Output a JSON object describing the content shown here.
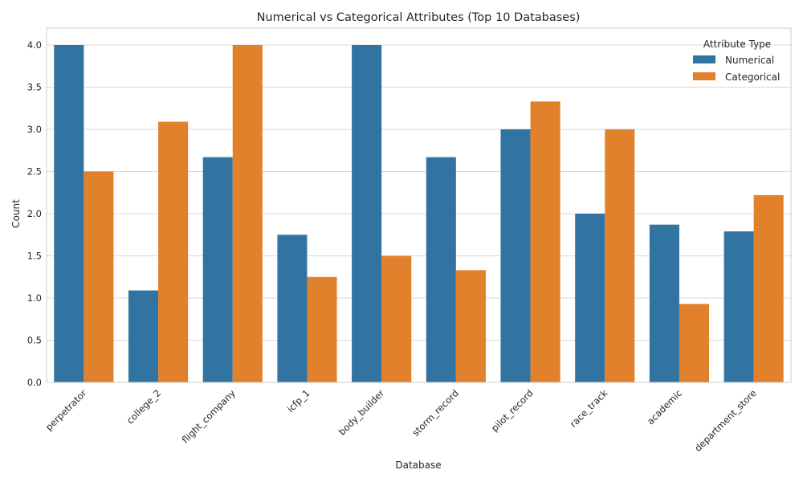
{
  "chart_data": {
    "type": "bar",
    "title": "Numerical vs Categorical Attributes (Top 10 Databases)",
    "xlabel": "Database",
    "ylabel": "Count",
    "ylim": [
      0,
      4.2
    ],
    "yticks": [
      "0.0",
      "0.5",
      "1.0",
      "1.5",
      "2.0",
      "2.5",
      "3.0",
      "3.5",
      "4.0"
    ],
    "categories": [
      "perpetrator",
      "college_2",
      "flight_company",
      "icfp_1",
      "body_builder",
      "storm_record",
      "pilot_record",
      "race_track",
      "academic",
      "department_store"
    ],
    "series": [
      {
        "name": "Numerical",
        "color": "#3274a1",
        "values": [
          4.0,
          1.09,
          2.67,
          1.75,
          4.0,
          2.67,
          3.0,
          2.0,
          1.87,
          1.79
        ]
      },
      {
        "name": "Categorical",
        "color": "#e1812c",
        "values": [
          2.5,
          3.09,
          4.0,
          1.25,
          1.5,
          1.33,
          3.33,
          3.0,
          0.93,
          2.22
        ]
      }
    ],
    "grid": true,
    "legend": {
      "title": "Attribute Type",
      "position": "top-right"
    }
  }
}
